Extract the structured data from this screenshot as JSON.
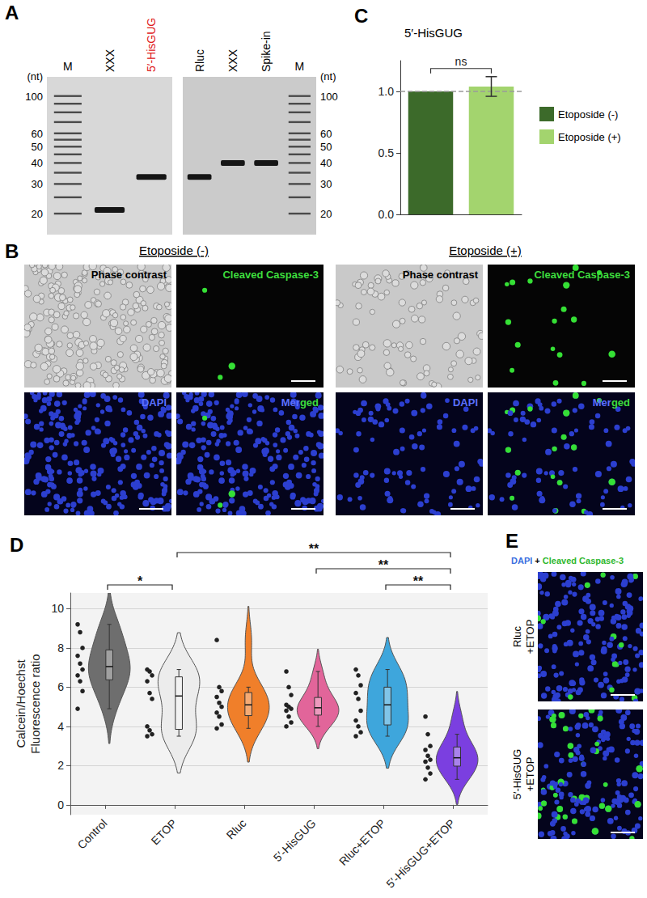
{
  "figure": {
    "A": {
      "panel": "A",
      "unit": "(nt)",
      "nt_range": [
        130,
        15
      ],
      "gels": [
        {
          "ladder_side": "left",
          "ladder_labels": [
            100,
            60,
            50,
            40,
            30,
            20
          ],
          "lanes": [
            {
              "label": "M",
              "bands": [
                20,
                25,
                30,
                35,
                40,
                45,
                50,
                55,
                60,
                70,
                80,
                90,
                100
              ]
            },
            {
              "label": "XXX",
              "bands": [
                21
              ]
            },
            {
              "label": "5′-HisGUG",
              "color": "#e0201b",
              "bands": [
                33
              ]
            }
          ]
        },
        {
          "ladder_side": "right",
          "ladder_labels": [
            100,
            60,
            50,
            40,
            30,
            20
          ],
          "lanes": [
            {
              "label": "Rluc",
              "bands": [
                33
              ]
            },
            {
              "label": "XXX",
              "bands": [
                40
              ]
            },
            {
              "label": "Spike-in",
              "bands": [
                40
              ]
            },
            {
              "label": "M",
              "bands": [
                20,
                25,
                30,
                35,
                40,
                45,
                50,
                55,
                60,
                70,
                80,
                90,
                100
              ]
            }
          ]
        }
      ]
    },
    "B": {
      "panel": "B",
      "groups": [
        {
          "title": "Etoposide (-)",
          "images": [
            {
              "type": "phase",
              "label": [
                {
                  "text": "Phase contrast",
                  "color": "#000000"
                }
              ]
            },
            {
              "type": "caspase",
              "label": [
                {
                  "text": "Cleaved Caspase-3",
                  "color": "#3ddc3d"
                }
              ]
            },
            {
              "type": "dapi",
              "label": [
                {
                  "text": "DAPI",
                  "color": "#5a70ff"
                }
              ]
            },
            {
              "type": "merged",
              "label": [
                {
                  "text": "Mer",
                  "color": "#5a70ff"
                },
                {
                  "text": "ged",
                  "color": "#3ddc3d"
                }
              ]
            }
          ]
        },
        {
          "title": "Etoposide (+)",
          "images": [
            {
              "type": "phase",
              "label": [
                {
                  "text": "Phase contrast",
                  "color": "#000000"
                }
              ]
            },
            {
              "type": "caspase",
              "label": [
                {
                  "text": "Cleaved Caspase-3",
                  "color": "#3ddc3d"
                }
              ]
            },
            {
              "type": "dapi",
              "label": [
                {
                  "text": "DAPI",
                  "color": "#5a70ff"
                }
              ]
            },
            {
              "type": "merged",
              "label": [
                {
                  "text": "Mer",
                  "color": "#5a70ff"
                },
                {
                  "text": "ged",
                  "color": "#3ddc3d"
                }
              ]
            }
          ]
        }
      ]
    },
    "E": {
      "panel": "E",
      "title": [
        {
          "text": "DAPI",
          "color": "#3b6fe0"
        },
        {
          "text": " + ",
          "color": "#000000"
        },
        {
          "text": "Cleaved Caspase-3",
          "color": "#2fb82f"
        }
      ],
      "images": [
        {
          "type": "merged",
          "label": [
            "Rluc",
            "+ETOP"
          ]
        },
        {
          "type": "merged",
          "label": [
            "5′-HisGUG",
            "+ETOP"
          ]
        }
      ]
    }
  },
  "chart_data": [
    {
      "panel": "C",
      "type": "bar",
      "title": "5′-HisGUG",
      "categories": [
        null,
        null
      ],
      "series": [
        {
          "name": "Etoposide (-)",
          "color": "#3c6a2a",
          "values": [
            1.0,
            null
          ],
          "errors": [
            null,
            null
          ]
        },
        {
          "name": "Etoposide (+)",
          "color": "#a3d46e",
          "values": [
            null,
            1.04
          ],
          "errors": [
            null,
            0.08
          ]
        }
      ],
      "ylim": [
        0,
        1.25
      ],
      "yticks": [
        {
          "value": 0,
          "label": "0.0"
        },
        {
          "value": 0.5,
          "label": "0.5"
        },
        {
          "value": 1,
          "label": "1.0"
        }
      ],
      "hline": 1.0,
      "annotations": [
        {
          "text": "ns",
          "between": [
            0,
            1
          ]
        }
      ],
      "legend": "right",
      "tick_labels": "y",
      "grid": false
    },
    {
      "panel": "D",
      "type": "violin",
      "ylabel": "Calcein/Hoechst Fluorescence ratio",
      "categories": [
        "Control",
        "ETOP",
        "Rluc",
        "5′-HisGUG",
        "Rluc+ETOP",
        "5′-HisGUG+ETOP"
      ],
      "colors": [
        "#6e6e6e",
        "#ececec",
        "#f07f2a",
        "#e2659a",
        "#3ea6dc",
        "#7b3fe0"
      ],
      "values": [
        [
          9.2,
          8.8,
          8.0,
          7.6,
          7.2,
          6.9,
          6.6,
          6.3,
          5.8,
          4.9
        ],
        [
          6.9,
          6.8,
          6.6,
          6.3,
          5.7,
          5.4,
          4.0,
          3.8,
          3.6,
          3.5
        ],
        [
          8.4,
          6.0,
          5.8,
          5.5,
          5.2,
          5.0,
          4.7,
          4.5,
          4.1,
          3.9
        ],
        [
          6.8,
          6.0,
          5.6,
          5.1,
          5.0,
          4.9,
          4.8,
          4.5,
          4.2,
          4.0
        ],
        [
          6.9,
          6.6,
          6.1,
          5.7,
          5.4,
          4.8,
          4.3,
          4.0,
          3.7,
          3.5
        ],
        [
          4.5,
          3.6,
          3.0,
          2.8,
          2.5,
          2.3,
          2.2,
          1.9,
          1.6,
          1.3
        ]
      ],
      "ylim": [
        -0.5,
        10.8
      ],
      "yticks": [
        0,
        2,
        4,
        6,
        8,
        10
      ],
      "grid": true,
      "marker": "circle",
      "annotations": [
        {
          "text": "*",
          "between": [
            0,
            1
          ]
        },
        {
          "text": "**",
          "between": [
            1,
            5
          ]
        },
        {
          "text": "**",
          "between": [
            3,
            5
          ]
        },
        {
          "text": "**",
          "between": [
            4,
            5
          ]
        }
      ]
    }
  ]
}
